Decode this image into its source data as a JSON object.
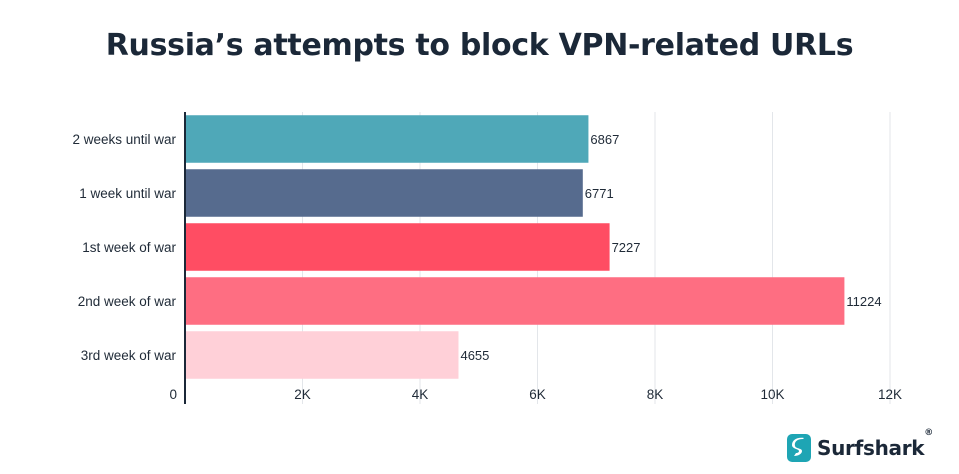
{
  "chart_data": {
    "type": "bar",
    "orientation": "horizontal",
    "title": "Russia’s attempts to block VPN-related URLs",
    "categories": [
      "2 weeks until war",
      "1 week until war",
      "1st week of war",
      "2nd week of war",
      "3rd week of war"
    ],
    "values": [
      6867,
      6771,
      7227,
      11224,
      4655
    ],
    "value_labels": [
      "6867",
      "6771",
      "7227",
      "11224",
      "4655"
    ],
    "bar_colors": [
      "#4fa8b8",
      "#566b8e",
      "#ff4d63",
      "#fe6e82",
      "#ffd0d8"
    ],
    "xlim": [
      0,
      12000
    ],
    "xticks": [
      0,
      2000,
      4000,
      6000,
      8000,
      10000,
      12000
    ],
    "xtick_labels": [
      "0",
      "2K",
      "4K",
      "6K",
      "8K",
      "10K",
      "12K"
    ],
    "xlabel": "",
    "ylabel": "",
    "grid": true
  },
  "brand": {
    "name": "Surfshark",
    "registered_mark": "®",
    "logo_color": "#1ea5b4",
    "logo_icon": "surfshark-logo-icon"
  }
}
